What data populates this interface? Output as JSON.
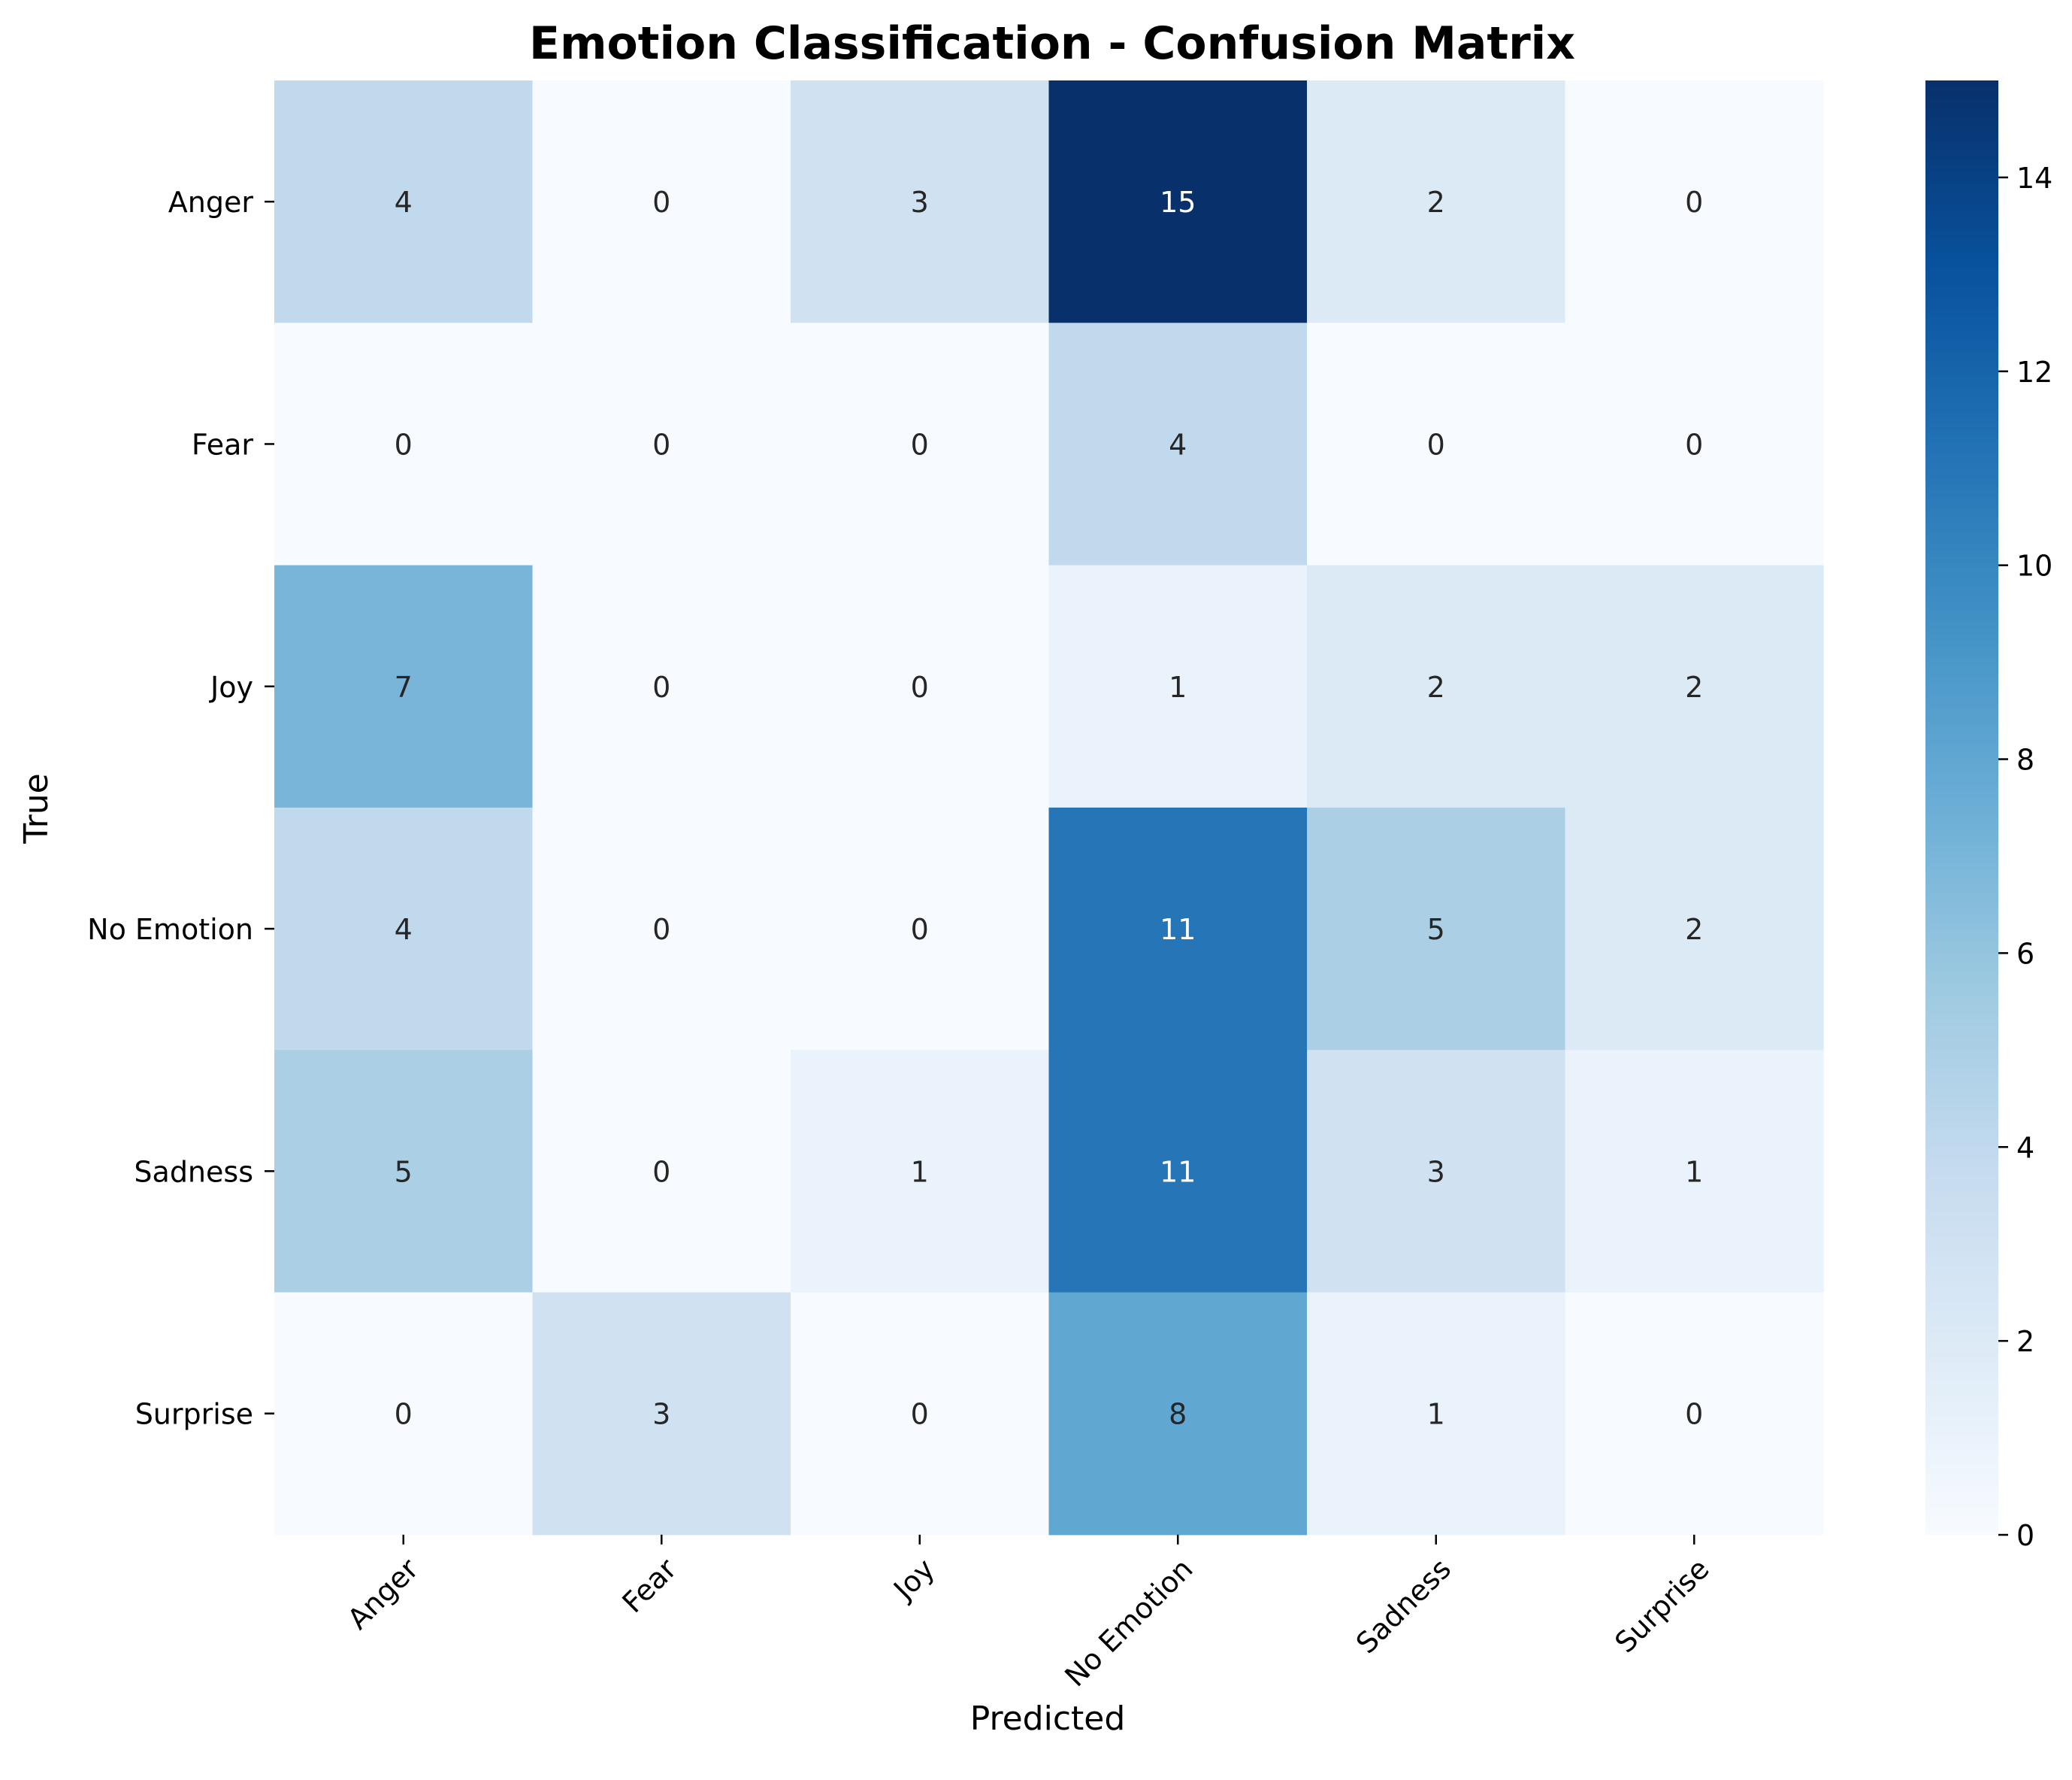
{
  "chart_data": {
    "type": "heatmap",
    "title": "Emotion Classification - Confusion Matrix",
    "xlabel": "Predicted",
    "ylabel": "True",
    "x_categories": [
      "Anger",
      "Fear",
      "Joy",
      "No Emotion",
      "Sadness",
      "Surprise"
    ],
    "y_categories": [
      "Anger",
      "Fear",
      "Joy",
      "No Emotion",
      "Sadness",
      "Surprise"
    ],
    "values": [
      [
        4,
        0,
        3,
        15,
        2,
        0
      ],
      [
        0,
        0,
        0,
        4,
        0,
        0
      ],
      [
        7,
        0,
        0,
        1,
        2,
        2
      ],
      [
        4,
        0,
        0,
        11,
        5,
        2
      ],
      [
        5,
        0,
        1,
        11,
        3,
        1
      ],
      [
        0,
        3,
        0,
        8,
        1,
        0
      ]
    ],
    "colorbar": {
      "range": [
        0,
        15
      ],
      "ticks": [
        0,
        2,
        4,
        6,
        8,
        10,
        12,
        14
      ],
      "colormap": "Blues"
    },
    "annotations": "cell values shown",
    "grid": false,
    "legend": "colorbar right"
  }
}
